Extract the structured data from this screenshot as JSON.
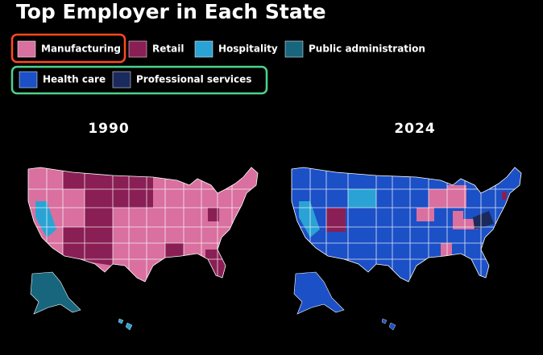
{
  "title": "Top Employer in Each State",
  "legend": [
    {
      "label": "Manufacturing",
      "color": "#d9709f"
    },
    {
      "label": "Retail",
      "color": "#8a1f55"
    },
    {
      "label": "Hospitality",
      "color": "#2aa3d4"
    },
    {
      "label": "Public administration",
      "color": "#17667e"
    },
    {
      "label": "Health care",
      "color": "#1c50c6"
    },
    {
      "label": "Professional services",
      "color": "#1b2a5c"
    }
  ],
  "maps": [
    {
      "label": "1990"
    },
    {
      "label": "2024"
    }
  ]
}
